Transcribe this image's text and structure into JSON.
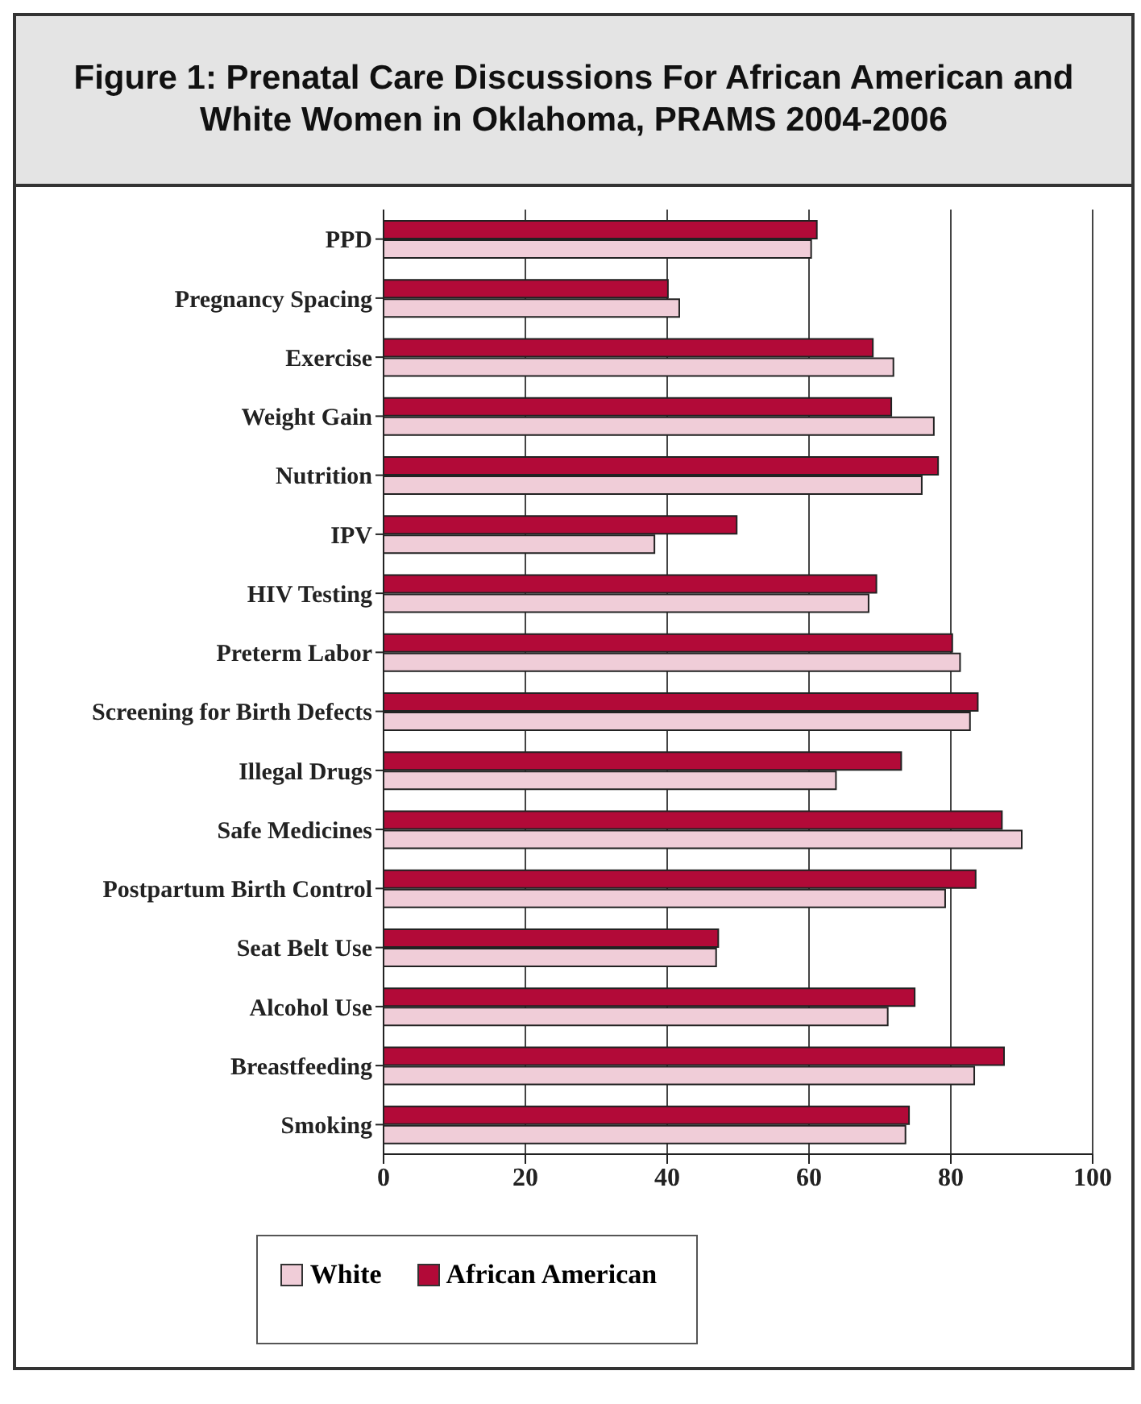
{
  "chart_data": {
    "type": "bar",
    "orientation": "horizontal",
    "title": "Figure 1: Prenatal Care Discussions For African American and White Women in Oklahoma, PRAMS 2004-2006",
    "categories": [
      "PPD",
      "Pregnancy Spacing",
      "Exercise",
      "Weight Gain",
      "Nutrition",
      "IPV",
      "HIV Testing",
      "Preterm Labor",
      "Screening for Birth Defects",
      "Illegal Drugs",
      "Safe Medicines",
      "Postpartum  Birth Control",
      "Seat Belt Use",
      "Alcohol Use",
      "Breastfeeding",
      "Smoking"
    ],
    "series": [
      {
        "name": "White",
        "color": "#f0cdd8",
        "values": [
          60.3,
          41.7,
          71.9,
          77.6,
          75.9,
          38.2,
          68.4,
          81.3,
          82.7,
          63.8,
          90.0,
          79.2,
          46.9,
          71.1,
          83.3,
          73.6
        ]
      },
      {
        "name": "African American",
        "color": "#b20a38",
        "values": [
          61.1,
          40.1,
          69.0,
          71.6,
          78.2,
          49.8,
          69.5,
          80.2,
          83.8,
          73.0,
          87.2,
          83.5,
          47.2,
          74.9,
          87.5,
          74.1
        ]
      }
    ],
    "xlim": [
      0,
      100
    ],
    "xticks": [
      0,
      20,
      40,
      60,
      80,
      100
    ],
    "grid": "x",
    "legend": "bottom"
  }
}
